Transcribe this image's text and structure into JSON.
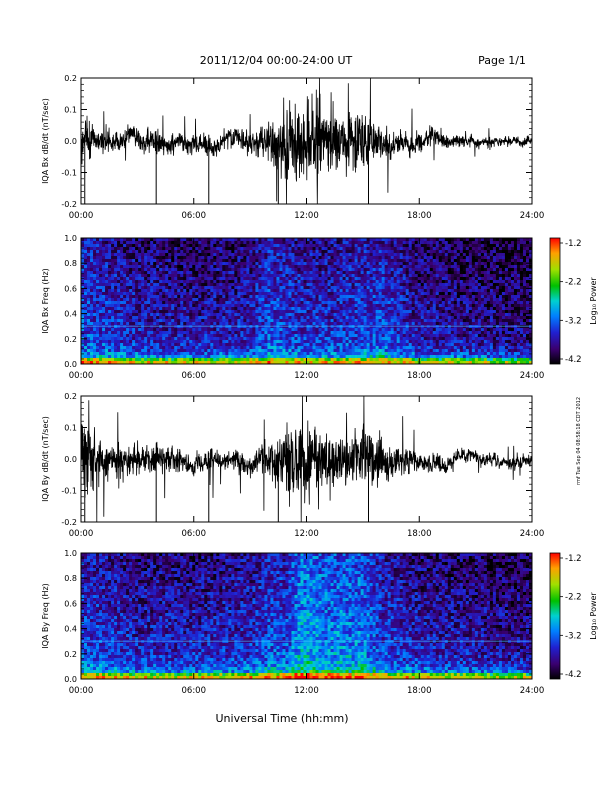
{
  "header": {
    "title": "2011/12/04  00:00-24:00 UT",
    "page": "Page 1/1",
    "side_stamp": "rmf Tue Sep 04 08:58:18 CDT 2012"
  },
  "xaxis": {
    "label": "Universal Time (hh:mm)",
    "ticks": [
      "00:00",
      "06:00",
      "12:00",
      "18:00",
      "24:00"
    ]
  },
  "colorbar": {
    "label": "Log₁₀ Power",
    "ticks": [
      "-1.2",
      "-2.2",
      "-3.2",
      "-4.2"
    ]
  },
  "chart_data": [
    {
      "type": "line",
      "ylabel": "IQA Bx dB/dt (nT/sec)",
      "xlim": [
        0,
        24
      ],
      "ylim": [
        -0.2,
        0.2
      ],
      "yticks": [
        "0.2",
        "0.1",
        "0.0",
        "-0.1",
        "-0.2"
      ],
      "envelope": {
        "x_hours": [
          0,
          0.5,
          1,
          2,
          3,
          4,
          5,
          6,
          7,
          8,
          9,
          10,
          10.5,
          11,
          11.5,
          12,
          12.5,
          13,
          14,
          15,
          16,
          17,
          18,
          19,
          20,
          21,
          22,
          23,
          24
        ],
        "amplitude": [
          0.12,
          0.08,
          0.06,
          0.05,
          0.05,
          0.06,
          0.05,
          0.04,
          0.05,
          0.05,
          0.06,
          0.09,
          0.12,
          0.2,
          0.2,
          0.2,
          0.2,
          0.15,
          0.12,
          0.16,
          0.08,
          0.06,
          0.05,
          0.04,
          0.03,
          0.025,
          0.02,
          0.02,
          0.02
        ]
      }
    },
    {
      "type": "heatmap",
      "ylabel": "IQA Bx Freq (Hz)",
      "xlim": [
        0,
        24
      ],
      "ylim": [
        0.0,
        1.0
      ],
      "yticks": [
        "1.0",
        "0.8",
        "0.6",
        "0.4",
        "0.2",
        "0.0"
      ],
      "zlim": [
        -4.2,
        -1.2
      ]
    },
    {
      "type": "line",
      "ylabel": "IQA By dB/dt (nT/sec)",
      "xlim": [
        0,
        24
      ],
      "ylim": [
        -0.2,
        0.2
      ],
      "yticks": [
        "0.2",
        "0.1",
        "0.0",
        "-0.1",
        "-0.2"
      ],
      "envelope": {
        "x_hours": [
          0,
          0.5,
          1,
          2,
          3,
          4,
          5,
          6,
          7,
          8,
          9,
          10,
          10.5,
          11,
          11.5,
          12,
          12.5,
          13,
          14,
          15,
          16,
          17,
          18,
          19,
          20,
          21,
          22,
          23,
          24
        ],
        "amplitude": [
          0.2,
          0.15,
          0.1,
          0.08,
          0.07,
          0.07,
          0.06,
          0.05,
          0.05,
          0.04,
          0.05,
          0.08,
          0.12,
          0.2,
          0.2,
          0.2,
          0.18,
          0.15,
          0.12,
          0.15,
          0.1,
          0.07,
          0.05,
          0.04,
          0.04,
          0.03,
          0.03,
          0.03,
          0.03
        ]
      }
    },
    {
      "type": "heatmap",
      "ylabel": "IQA By Freq (Hz)",
      "xlim": [
        0,
        24
      ],
      "ylim": [
        0.0,
        1.0
      ],
      "yticks": [
        "1.0",
        "0.8",
        "0.6",
        "0.4",
        "0.2",
        "0.0"
      ],
      "zlim": [
        -4.2,
        -1.2
      ]
    }
  ]
}
